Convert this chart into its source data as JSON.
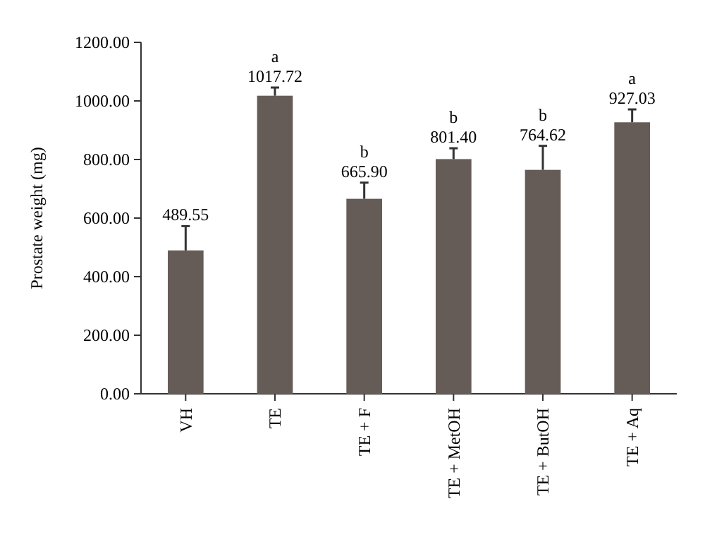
{
  "chart_data": {
    "type": "bar",
    "ylabel": "Prostate weight (mg)",
    "categories": [
      "VH",
      "TE",
      "TE + F",
      "TE + MetOH",
      "TE + ButOH",
      "TE + Aq"
    ],
    "values": [
      489.55,
      1017.72,
      665.9,
      801.4,
      764.62,
      927.03
    ],
    "value_labels": [
      "489.55",
      "1017.72",
      "665.90",
      "801.40",
      "764.62",
      "927.03"
    ],
    "errors": [
      83,
      28,
      55,
      37,
      82,
      44
    ],
    "color": "#665c57",
    "ylim": [
      0,
      1200
    ],
    "yticks": [
      {
        "value": 0,
        "label": "0.00"
      },
      {
        "value": 200,
        "label": "200.00"
      },
      {
        "value": 400,
        "label": "400.00"
      },
      {
        "value": 600,
        "label": "600.00"
      },
      {
        "value": 800,
        "label": "800.00"
      },
      {
        "value": 1000,
        "label": "1000.00"
      },
      {
        "value": 1200,
        "label": "1200.00"
      }
    ],
    "annotations": [
      {
        "text": "a",
        "x": "TE",
        "y": 1046
      },
      {
        "text": "b",
        "x": "TE + F",
        "y": 721
      },
      {
        "text": "b",
        "x": "TE + MetOH",
        "y": 838
      },
      {
        "text": "b",
        "x": "TE + ButOH",
        "y": 846
      },
      {
        "text": "a",
        "x": "TE + Aq",
        "y": 971
      }
    ]
  }
}
